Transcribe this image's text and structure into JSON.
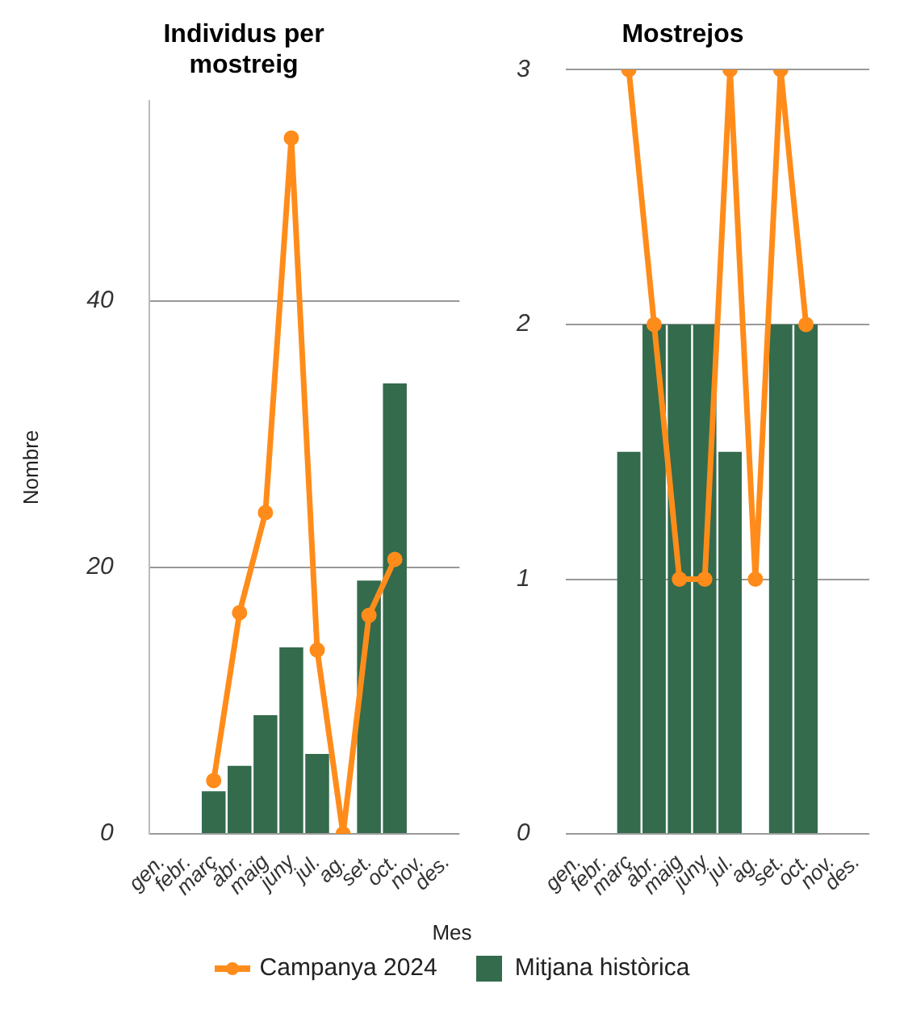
{
  "chart_data": [
    {
      "type": "bar",
      "title": "Individus per mostreig",
      "ylabel": "Nombre",
      "xlabel": "Mes",
      "legend": "bottom",
      "grid": "y",
      "marker": "circle",
      "line_style": "solid",
      "categories": [
        "gen.",
        "febr.",
        "març",
        "abr.",
        "maig",
        "juny",
        "jul.",
        "ag.",
        "set.",
        "oct.",
        "nov.",
        "des."
      ],
      "ylim": [
        0,
        55
      ],
      "yticks": [
        0,
        20,
        40
      ],
      "series": [
        {
          "name": "Campanya 2024",
          "type": "line",
          "color": "#ff8c1a",
          "values": [
            null,
            null,
            4.0,
            16.6,
            24.1,
            52.2,
            13.8,
            0,
            16.4,
            20.6,
            null,
            null
          ]
        },
        {
          "name": "Mitjana històrica",
          "color": "#336b4c",
          "values": [
            null,
            null,
            3.2,
            5.1,
            8.9,
            14.0,
            6.0,
            null,
            19.0,
            33.8,
            null,
            null
          ]
        }
      ]
    },
    {
      "type": "bar",
      "title": "Mostrejos",
      "grid": "y",
      "marker": "circle",
      "line_style": "solid",
      "categories": [
        "gen.",
        "febr.",
        "març",
        "abr.",
        "maig",
        "juny",
        "jul.",
        "ag.",
        "set.",
        "oct.",
        "nov.",
        "des."
      ],
      "ylim": [
        0,
        3
      ],
      "yticks": [
        0,
        1,
        2,
        3
      ],
      "series": [
        {
          "type": "line",
          "color": "#ff8c1a",
          "values": [
            null,
            null,
            3,
            2,
            1,
            1,
            3,
            1,
            3,
            2,
            null,
            null
          ]
        },
        {
          "color": "#336b4c",
          "values": [
            null,
            null,
            1.5,
            2,
            2,
            2,
            1.5,
            null,
            2,
            2,
            null,
            null
          ]
        }
      ]
    }
  ]
}
